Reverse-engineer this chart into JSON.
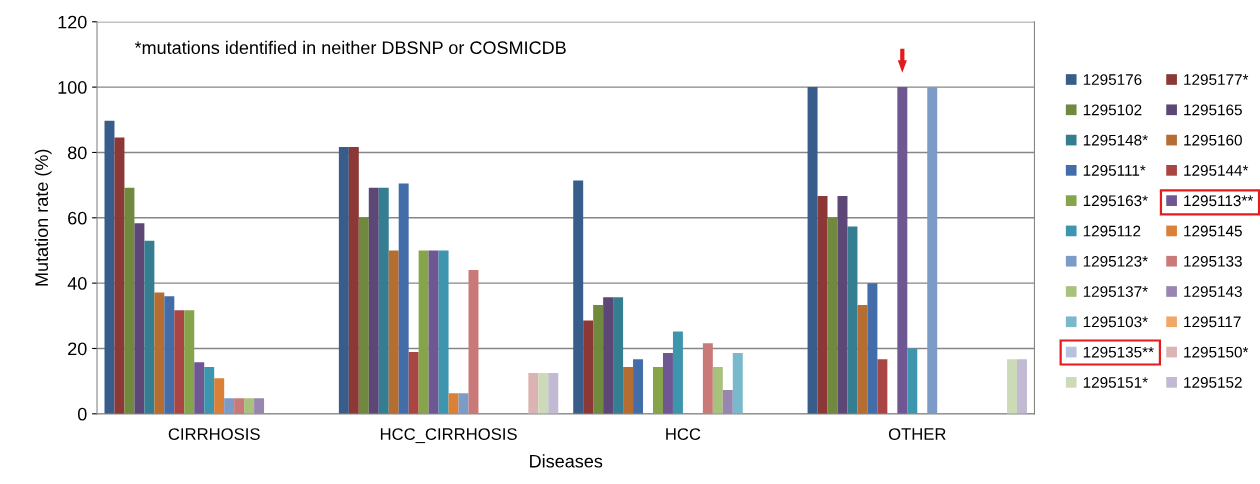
{
  "chart_data": {
    "type": "bar",
    "xlabel": "Diseases",
    "ylabel": "Mutation rate (%)",
    "categories": [
      "CIRRHOSIS",
      "HCC_CIRRHOSIS",
      "HCC",
      "OTHER"
    ],
    "ylim": [
      0,
      120
    ],
    "yticks": [
      0,
      20,
      40,
      60,
      80,
      100,
      120
    ],
    "grid": "y",
    "legend": "right",
    "annotations": [
      "*mutations identified in neither DBSNP or COSMICDB"
    ],
    "series": [
      {
        "name": "1295176",
        "color": "#385d8a",
        "values": [
          89.7,
          81.7,
          71.4,
          100
        ]
      },
      {
        "name": "1295177*",
        "color": "#8c3836",
        "values": [
          84.6,
          81.7,
          28.6,
          66.7
        ]
      },
      {
        "name": "1295102",
        "color": "#71893f",
        "values": [
          69.2,
          60,
          33.3,
          60
        ]
      },
      {
        "name": "1295165",
        "color": "#5c4776",
        "values": [
          58.3,
          69.2,
          35.7,
          66.7
        ]
      },
      {
        "name": "1295148*",
        "color": "#357d91",
        "values": [
          53,
          69.2,
          35.7,
          57.3
        ]
      },
      {
        "name": "1295160",
        "color": "#b66d31",
        "values": [
          37.1,
          50,
          14.3,
          33.3
        ]
      },
      {
        "name": "1295111*",
        "color": "#426da9",
        "values": [
          36,
          70.5,
          16.7,
          40
        ]
      },
      {
        "name": "1295144*",
        "color": "#a94643",
        "values": [
          31.7,
          18.9,
          0,
          16.7
        ]
      },
      {
        "name": "1295163*",
        "color": "#86a44a",
        "values": [
          31.7,
          50,
          14.3,
          0
        ]
      },
      {
        "name": "1295113**",
        "color": "#6e5793",
        "values": [
          15.8,
          50,
          18.6,
          100
        ]
      },
      {
        "name": "1295112",
        "color": "#3d96ae",
        "values": [
          14.3,
          50,
          25.2,
          20
        ]
      },
      {
        "name": "1295145",
        "color": "#da8137",
        "values": [
          10.9,
          6.3,
          0,
          0
        ]
      },
      {
        "name": "1295123*",
        "color": "#7c9bc7",
        "values": [
          4.8,
          6.3,
          0,
          100
        ]
      },
      {
        "name": "1295133",
        "color": "#c97a78",
        "values": [
          4.8,
          44,
          21.6,
          0
        ]
      },
      {
        "name": "1295137*",
        "color": "#a8c27e",
        "values": [
          4.8,
          0,
          14.3,
          0
        ]
      },
      {
        "name": "1295143",
        "color": "#9886b0",
        "values": [
          4.8,
          0,
          7.3,
          0
        ]
      },
      {
        "name": "1295103*",
        "color": "#7ab8cc",
        "values": [
          0,
          0,
          18.6,
          0
        ]
      },
      {
        "name": "1295117",
        "color": "#f0a868",
        "values": [
          0,
          0,
          0,
          0
        ]
      },
      {
        "name": "1295135**",
        "color": "#b5c3db",
        "values": [
          0,
          0,
          0,
          0
        ]
      },
      {
        "name": "1295150*",
        "color": "#dcb3b3",
        "values": [
          0,
          12.5,
          0,
          0
        ]
      },
      {
        "name": "1295151*",
        "color": "#ccdab8",
        "values": [
          0,
          12.5,
          0,
          16.7
        ]
      },
      {
        "name": "1295152",
        "color": "#c2b9d2",
        "values": [
          0,
          12.5,
          0,
          16.7
        ]
      }
    ]
  }
}
